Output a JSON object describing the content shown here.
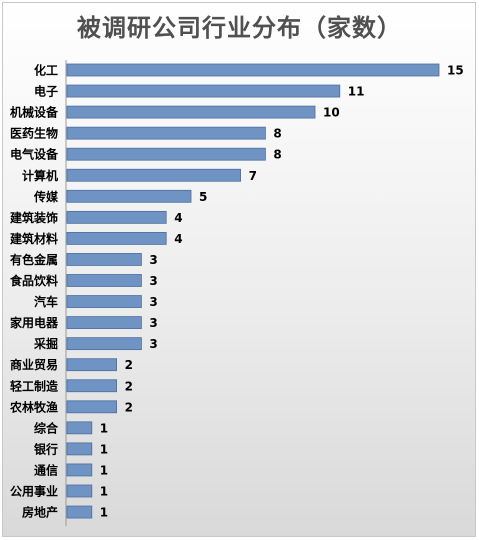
{
  "chart_data": {
    "type": "bar",
    "orientation": "horizontal",
    "title": "被调研公司行业分布（家数）",
    "categories": [
      "化工",
      "电子",
      "机械设备",
      "医药生物",
      "电气设备",
      "计算机",
      "传媒",
      "建筑装饰",
      "建筑材料",
      "有色金属",
      "食品饮料",
      "汽车",
      "家用电器",
      "采掘",
      "商业贸易",
      "轻工制造",
      "农林牧渔",
      "综合",
      "银行",
      "通信",
      "公用事业",
      "房地产"
    ],
    "values": [
      15,
      11,
      10,
      8,
      8,
      7,
      5,
      4,
      4,
      3,
      3,
      3,
      3,
      3,
      2,
      2,
      2,
      1,
      1,
      1,
      1,
      1
    ],
    "xlim": [
      0,
      16
    ],
    "grid": false,
    "data_labels": true,
    "bar_color": "#6f93c3",
    "bar_border": "#4a6fa0"
  }
}
